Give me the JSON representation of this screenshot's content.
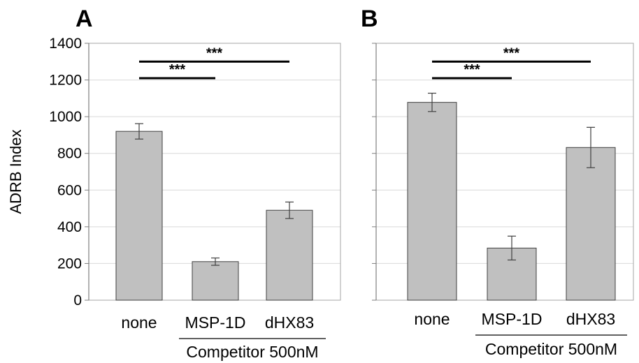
{
  "chart_data": [
    {
      "panel": "A",
      "type": "bar",
      "ylabel": "ADRB Index",
      "ylim": [
        0,
        1400
      ],
      "yticks": [
        0,
        200,
        400,
        600,
        800,
        1000,
        1200,
        1400
      ],
      "grid": true,
      "categories": [
        "none",
        "MSP-1D",
        "dHX83"
      ],
      "values": [
        920,
        210,
        490
      ],
      "errors": [
        42,
        20,
        45
      ],
      "bar_color": "#c0c0c0",
      "group_label": "Competitor 500nM",
      "group_categories": [
        "MSP-1D",
        "dHX83"
      ],
      "significance": [
        {
          "from": "none",
          "to": "MSP-1D",
          "label": "***"
        },
        {
          "from": "none",
          "to": "dHX83",
          "label": "***"
        }
      ]
    },
    {
      "panel": "B",
      "type": "bar",
      "ylim": [
        0,
        1400
      ],
      "yticks": [
        0,
        200,
        400,
        600,
        800,
        1000,
        1200,
        1400
      ],
      "grid": true,
      "categories": [
        "none",
        "MSP-1D",
        "dHX83"
      ],
      "values": [
        1078,
        284,
        832
      ],
      "errors": [
        50,
        65,
        110
      ],
      "bar_color": "#c0c0c0",
      "group_label": "Competitor 500nM",
      "group_categories": [
        "MSP-1D",
        "dHX83"
      ],
      "significance": [
        {
          "from": "none",
          "to": "MSP-1D",
          "label": "***"
        },
        {
          "from": "none",
          "to": "dHX83",
          "label": "***"
        }
      ]
    }
  ]
}
